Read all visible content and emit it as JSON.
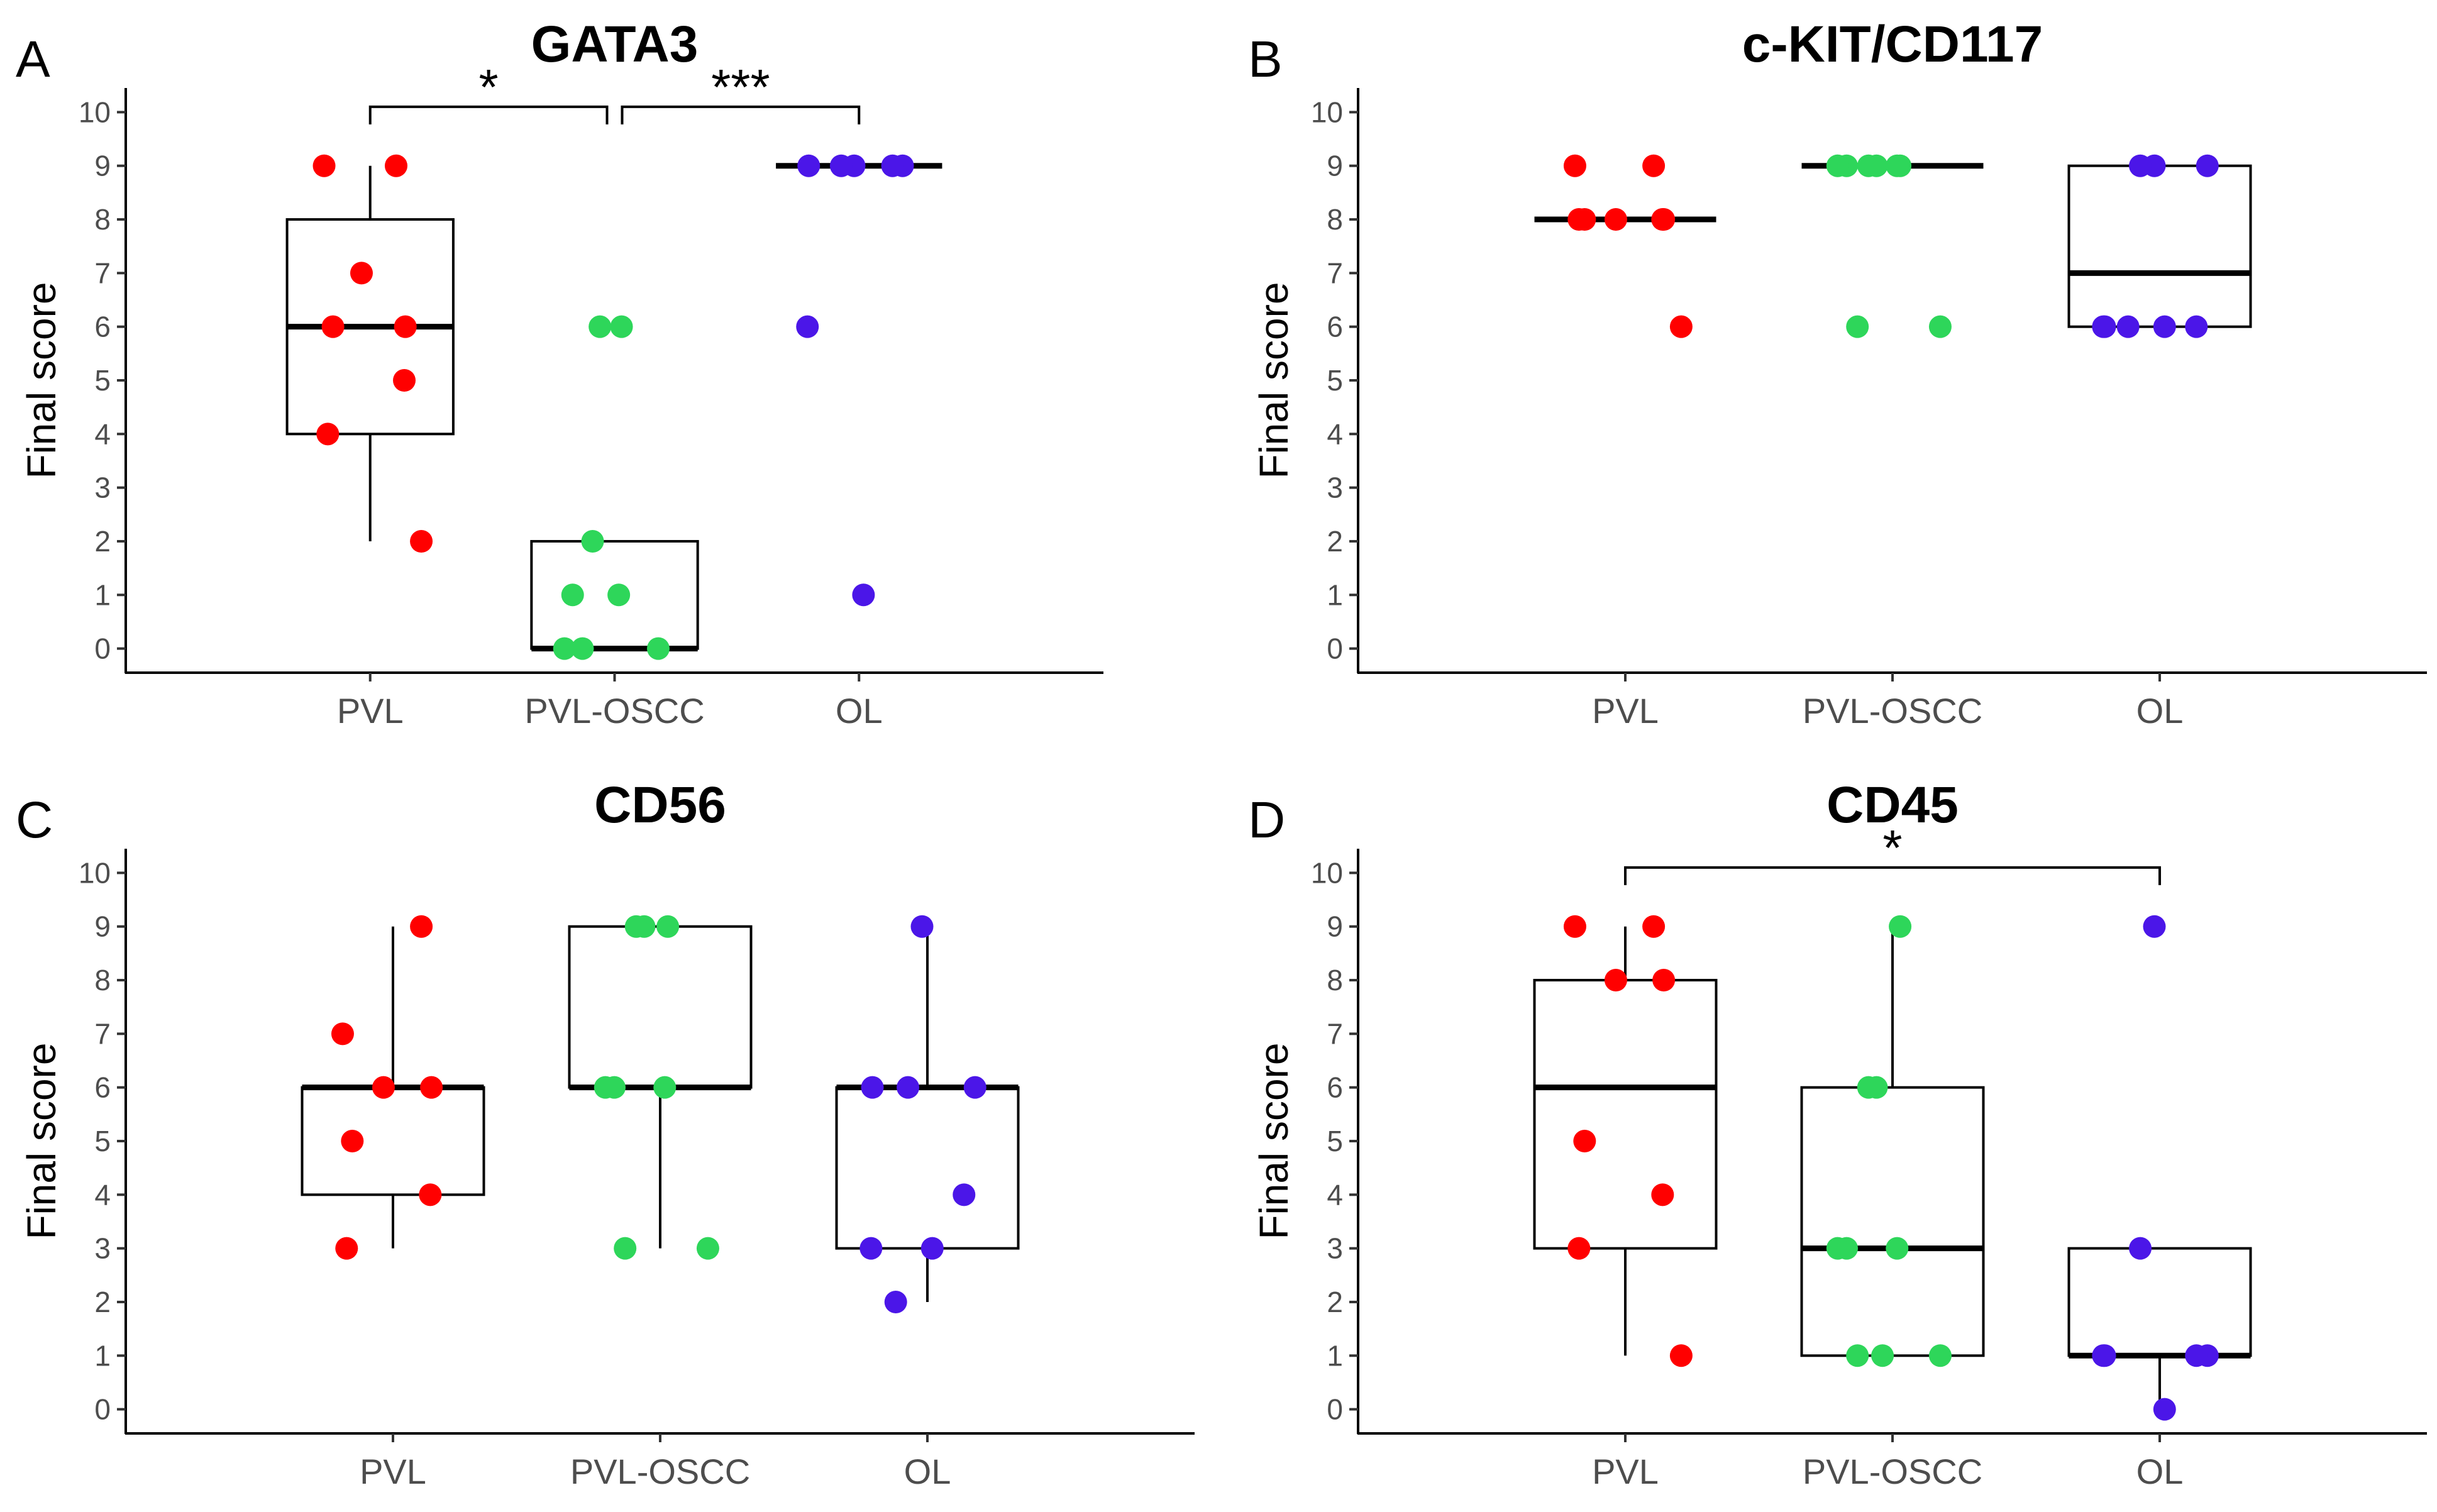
{
  "chart_data": [
    {
      "type": "boxplot",
      "panel": "A",
      "title": "GATA3",
      "ylabel": "Final score",
      "xlabel": "",
      "categories": [
        "PVL",
        "PVL-OSCC",
        "OL"
      ],
      "ylim": [
        0,
        10
      ],
      "yticks": [
        0,
        1,
        2,
        3,
        4,
        5,
        6,
        7,
        8,
        9,
        10
      ],
      "grid": false,
      "colors": [
        "#ff0000",
        "#2ed65a",
        "#4b16e8"
      ],
      "boxes": [
        {
          "category": "PVL",
          "whisker_low": 2,
          "q1": 4,
          "median": 6,
          "q3": 8,
          "whisker_high": 9
        },
        {
          "category": "PVL-OSCC",
          "whisker_low": 0,
          "q1": 0,
          "median": 0,
          "q3": 2,
          "whisker_high": 2
        },
        {
          "category": "OL",
          "whisker_low": 9,
          "q1": 9,
          "median": 9,
          "q3": 9,
          "whisker_high": 9
        }
      ],
      "points": [
        [
          9,
          9,
          7,
          6,
          6,
          5,
          4,
          2
        ],
        [
          6,
          6,
          2,
          1,
          1,
          0,
          0,
          0
        ],
        [
          9,
          9,
          9,
          9,
          9,
          6,
          1
        ]
      ],
      "significance": [
        {
          "from": "PVL",
          "to": "PVL-OSCC",
          "label": "*"
        },
        {
          "from": "PVL-OSCC",
          "to": "OL",
          "label": "***"
        }
      ]
    },
    {
      "type": "boxplot",
      "panel": "B",
      "title": "c-KIT/CD117",
      "ylabel": "Final score",
      "xlabel": "",
      "categories": [
        "PVL",
        "PVL-OSCC",
        "OL"
      ],
      "ylim": [
        0,
        10
      ],
      "yticks": [
        0,
        1,
        2,
        3,
        4,
        5,
        6,
        7,
        8,
        9,
        10
      ],
      "grid": false,
      "colors": [
        "#ff0000",
        "#2ed65a",
        "#4b16e8"
      ],
      "boxes": [
        {
          "category": "PVL",
          "whisker_low": 8,
          "q1": 8,
          "median": 8,
          "q3": 8,
          "whisker_high": 8
        },
        {
          "category": "PVL-OSCC",
          "whisker_low": 9,
          "q1": 9,
          "median": 9,
          "q3": 9,
          "whisker_high": 9
        },
        {
          "category": "OL",
          "whisker_low": 6,
          "q1": 6,
          "median": 7,
          "q3": 9,
          "whisker_high": 9
        }
      ],
      "points": [
        [
          9,
          9,
          8,
          8,
          8,
          8,
          8,
          6
        ],
        [
          9,
          9,
          9,
          9,
          9,
          9,
          6,
          6
        ],
        [
          9,
          9,
          9,
          6,
          6,
          6,
          6,
          6
        ]
      ],
      "significance": []
    },
    {
      "type": "boxplot",
      "panel": "C",
      "title": "CD56",
      "ylabel": "Final score",
      "xlabel": "",
      "categories": [
        "PVL",
        "PVL-OSCC",
        "OL"
      ],
      "ylim": [
        0,
        10
      ],
      "yticks": [
        0,
        1,
        2,
        3,
        4,
        5,
        6,
        7,
        8,
        9,
        10
      ],
      "grid": false,
      "colors": [
        "#ff0000",
        "#2ed65a",
        "#4b16e8"
      ],
      "boxes": [
        {
          "category": "PVL",
          "whisker_low": 3,
          "q1": 4,
          "median": 6,
          "q3": 6,
          "whisker_high": 9
        },
        {
          "category": "PVL-OSCC",
          "whisker_low": 3,
          "q1": 6,
          "median": 6,
          "q3": 9,
          "whisker_high": 9
        },
        {
          "category": "OL",
          "whisker_low": 2,
          "q1": 3,
          "median": 6,
          "q3": 6,
          "whisker_high": 9
        }
      ],
      "points": [
        [
          9,
          7,
          6,
          6,
          5,
          4,
          3
        ],
        [
          9,
          9,
          9,
          6,
          6,
          6,
          3,
          3
        ],
        [
          9,
          6,
          6,
          6,
          4,
          3,
          3,
          2
        ]
      ],
      "significance": []
    },
    {
      "type": "boxplot",
      "panel": "D",
      "title": "CD45",
      "ylabel": "Final score",
      "xlabel": "",
      "categories": [
        "PVL",
        "PVL-OSCC",
        "OL"
      ],
      "ylim": [
        0,
        10
      ],
      "yticks": [
        0,
        1,
        2,
        3,
        4,
        5,
        6,
        7,
        8,
        9,
        10
      ],
      "grid": false,
      "colors": [
        "#ff0000",
        "#2ed65a",
        "#4b16e8"
      ],
      "boxes": [
        {
          "category": "PVL",
          "whisker_low": 1,
          "q1": 3,
          "median": 6,
          "q3": 8,
          "whisker_high": 9
        },
        {
          "category": "PVL-OSCC",
          "whisker_low": 1,
          "q1": 1,
          "median": 3,
          "q3": 6,
          "whisker_high": 9
        },
        {
          "category": "OL",
          "whisker_low": 0,
          "q1": 1,
          "median": 1,
          "q3": 3,
          "whisker_high": 3
        }
      ],
      "points": [
        [
          9,
          9,
          8,
          8,
          5,
          4,
          3,
          1
        ],
        [
          9,
          6,
          6,
          3,
          3,
          3,
          1,
          1,
          1
        ],
        [
          9,
          3,
          1,
          1,
          1,
          1,
          0
        ]
      ],
      "significance": [
        {
          "from": "PVL",
          "to": "OL",
          "label": "*"
        }
      ]
    }
  ]
}
